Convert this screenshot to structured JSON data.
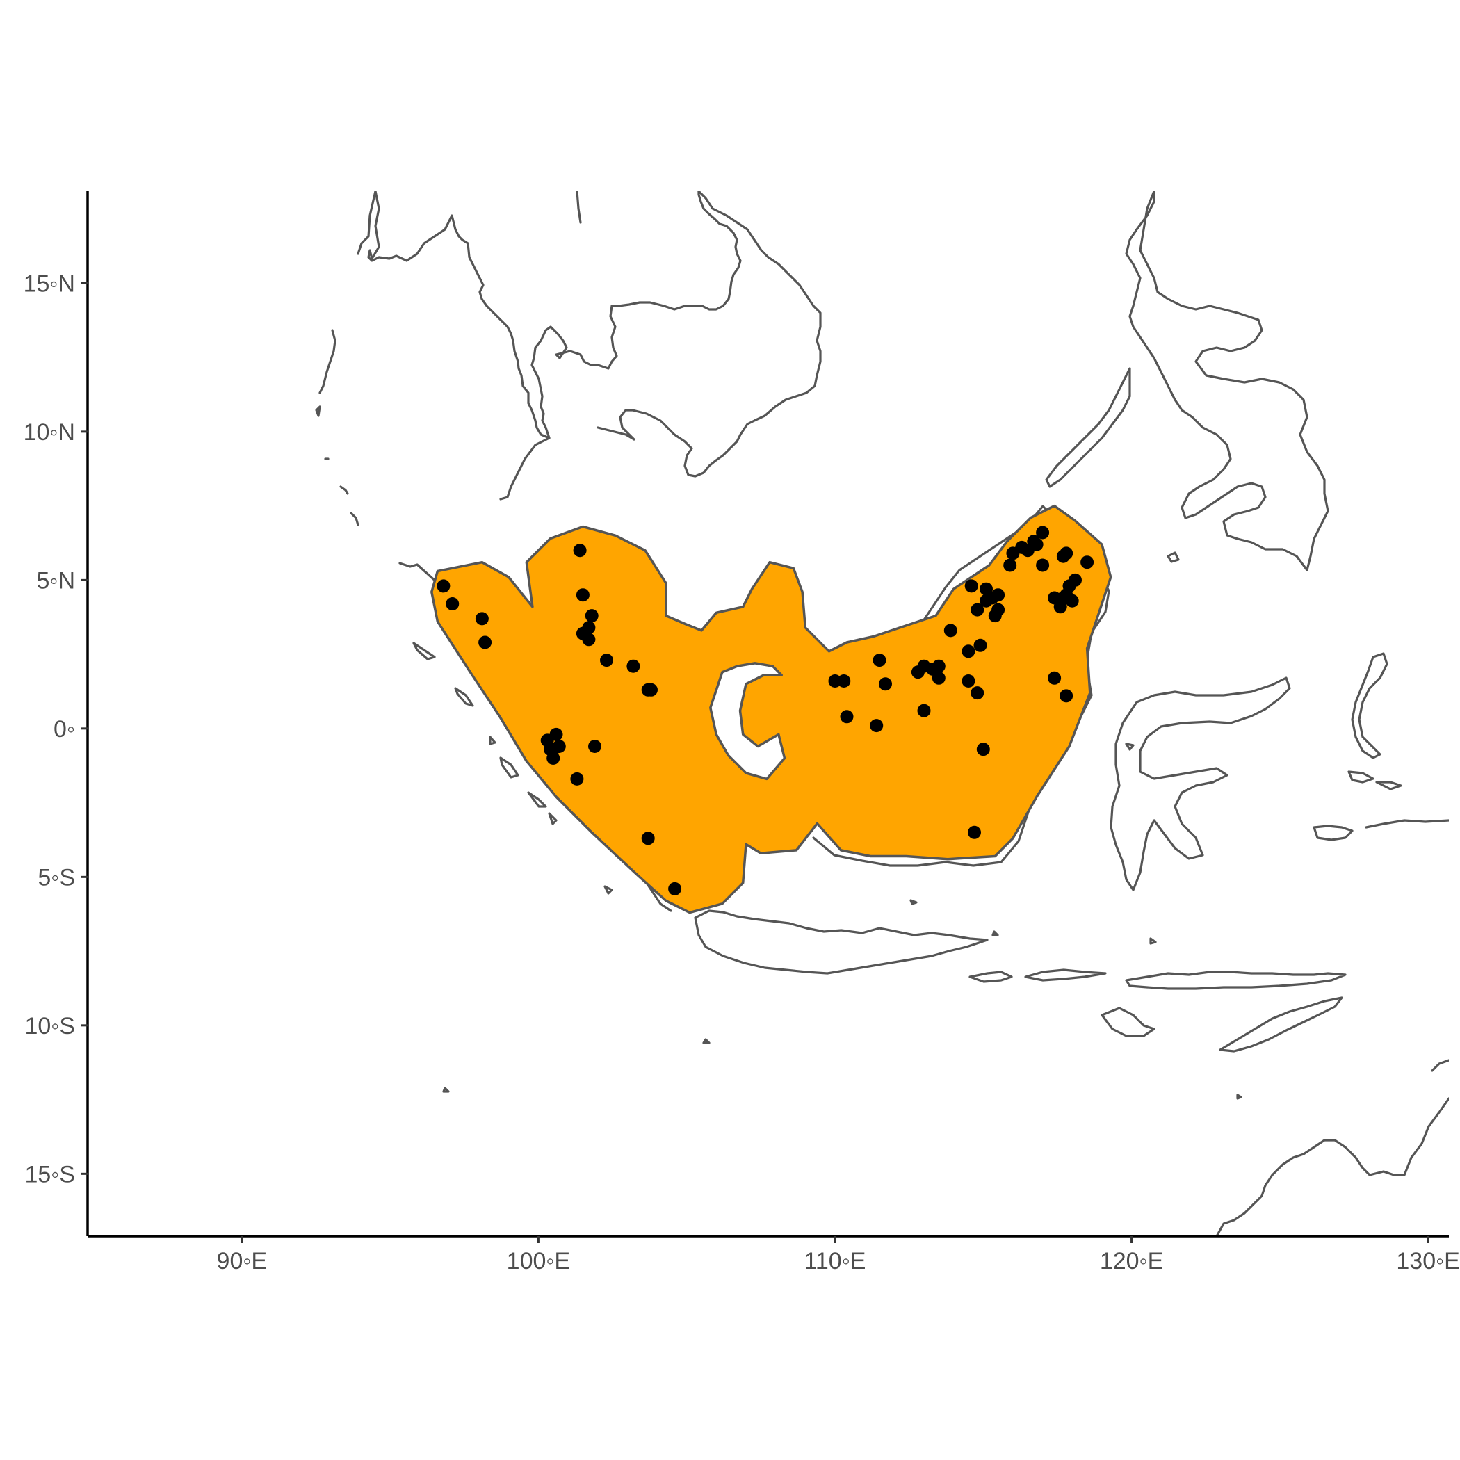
{
  "chart_data": {
    "type": "map",
    "title": "",
    "xlabel": "",
    "ylabel": "",
    "xlim": [
      84.8,
      130.7
    ],
    "ylim": [
      -17.1,
      18.1
    ],
    "x_ticks": [
      {
        "value": 90,
        "label": "90◦E"
      },
      {
        "value": 100,
        "label": "100◦E"
      },
      {
        "value": 110,
        "label": "110◦E"
      },
      {
        "value": 120,
        "label": "120◦E"
      },
      {
        "value": 130,
        "label": "130◦E"
      }
    ],
    "y_ticks": [
      {
        "value": 15,
        "label": "15◦N"
      },
      {
        "value": 10,
        "label": "10◦N"
      },
      {
        "value": 5,
        "label": "5◦N"
      },
      {
        "value": 0,
        "label": "0◦"
      },
      {
        "value": -5,
        "label": "5◦S"
      },
      {
        "value": -10,
        "label": "10◦S"
      },
      {
        "value": -15,
        "label": "15◦S"
      }
    ],
    "grid": false,
    "range_fill_color": "#FFA500",
    "point_color": "#000000",
    "coastline_color": "#555555",
    "range_polygon": [
      [
        96.6,
        5.3
      ],
      [
        98.1,
        5.6
      ],
      [
        99.0,
        5.1
      ],
      [
        99.8,
        4.1
      ],
      [
        99.6,
        5.6
      ],
      [
        100.4,
        6.4
      ],
      [
        101.5,
        6.8
      ],
      [
        102.6,
        6.5
      ],
      [
        103.6,
        6.0
      ],
      [
        104.3,
        4.9
      ],
      [
        104.3,
        3.8
      ],
      [
        105.0,
        3.5
      ],
      [
        105.5,
        3.3
      ],
      [
        106.0,
        3.9
      ],
      [
        106.9,
        4.1
      ],
      [
        107.2,
        4.7
      ],
      [
        107.8,
        5.6
      ],
      [
        108.6,
        5.4
      ],
      [
        108.9,
        4.6
      ],
      [
        109.0,
        3.4
      ],
      [
        109.8,
        2.6
      ],
      [
        110.4,
        2.9
      ],
      [
        111.3,
        3.1
      ],
      [
        113.4,
        3.8
      ],
      [
        114.0,
        4.7
      ],
      [
        115.2,
        5.5
      ],
      [
        115.8,
        6.3
      ],
      [
        116.6,
        7.1
      ],
      [
        117.4,
        7.5
      ],
      [
        118.1,
        7.0
      ],
      [
        119.0,
        6.2
      ],
      [
        119.3,
        5.1
      ],
      [
        118.8,
        3.6
      ],
      [
        118.5,
        2.7
      ],
      [
        118.6,
        1.2
      ],
      [
        117.9,
        -0.6
      ],
      [
        116.8,
        -2.3
      ],
      [
        116.0,
        -3.7
      ],
      [
        115.4,
        -4.3
      ],
      [
        113.8,
        -4.4
      ],
      [
        112.4,
        -4.3
      ],
      [
        111.2,
        -4.3
      ],
      [
        110.2,
        -4.1
      ],
      [
        109.4,
        -3.2
      ],
      [
        108.7,
        -4.1
      ],
      [
        107.5,
        -4.2
      ],
      [
        107.0,
        -3.9
      ],
      [
        106.9,
        -5.2
      ],
      [
        106.2,
        -5.9
      ],
      [
        105.1,
        -6.2
      ],
      [
        104.3,
        -5.8
      ],
      [
        103.3,
        -4.9
      ],
      [
        101.8,
        -3.5
      ],
      [
        100.6,
        -2.3
      ],
      [
        99.6,
        -1.1
      ],
      [
        98.7,
        0.4
      ],
      [
        97.7,
        1.9
      ],
      [
        96.6,
        3.6
      ],
      [
        96.4,
        4.6
      ],
      [
        96.6,
        5.3
      ]
    ],
    "range_holes": [
      [
        [
          106.2,
          1.9
        ],
        [
          106.7,
          2.1
        ],
        [
          107.3,
          2.2
        ],
        [
          107.9,
          2.1
        ],
        [
          108.2,
          1.8
        ],
        [
          107.6,
          1.8
        ],
        [
          107.0,
          1.5
        ],
        [
          106.8,
          0.6
        ],
        [
          106.9,
          -0.2
        ],
        [
          107.4,
          -0.6
        ],
        [
          108.1,
          -0.2
        ],
        [
          108.3,
          -1.0
        ],
        [
          107.7,
          -1.7
        ],
        [
          107.0,
          -1.5
        ],
        [
          106.4,
          -0.9
        ],
        [
          106.0,
          -0.2
        ],
        [
          105.8,
          0.7
        ],
        [
          106.2,
          1.9
        ]
      ]
    ],
    "points": [
      [
        96.8,
        4.8
      ],
      [
        97.1,
        4.2
      ],
      [
        98.1,
        3.7
      ],
      [
        98.2,
        2.9
      ],
      [
        101.4,
        6.0
      ],
      [
        101.5,
        4.5
      ],
      [
        101.8,
        3.8
      ],
      [
        101.7,
        3.4
      ],
      [
        101.5,
        3.2
      ],
      [
        101.7,
        3.0
      ],
      [
        102.3,
        2.3
      ],
      [
        103.2,
        2.1
      ],
      [
        103.7,
        1.3
      ],
      [
        103.8,
        1.3
      ],
      [
        100.3,
        -0.4
      ],
      [
        100.6,
        -0.2
      ],
      [
        100.5,
        -0.7
      ],
      [
        100.7,
        -0.6
      ],
      [
        100.4,
        -0.7
      ],
      [
        100.5,
        -1.0
      ],
      [
        101.9,
        -0.6
      ],
      [
        101.3,
        -1.7
      ],
      [
        103.7,
        -3.7
      ],
      [
        104.6,
        -5.4
      ],
      [
        110.0,
        1.6
      ],
      [
        110.3,
        1.6
      ],
      [
        110.4,
        0.4
      ],
      [
        111.5,
        2.3
      ],
      [
        111.7,
        1.5
      ],
      [
        111.4,
        0.1
      ],
      [
        112.8,
        1.9
      ],
      [
        113.0,
        2.1
      ],
      [
        113.3,
        2.0
      ],
      [
        113.5,
        2.1
      ],
      [
        113.5,
        1.7
      ],
      [
        113.0,
        0.6
      ],
      [
        113.9,
        3.3
      ],
      [
        114.5,
        2.6
      ],
      [
        114.5,
        1.6
      ],
      [
        114.8,
        1.2
      ],
      [
        114.9,
        2.8
      ],
      [
        114.6,
        4.8
      ],
      [
        114.8,
        4.0
      ],
      [
        115.1,
        4.7
      ],
      [
        115.1,
        4.3
      ],
      [
        115.3,
        4.4
      ],
      [
        115.5,
        4.5
      ],
      [
        115.5,
        4.0
      ],
      [
        115.4,
        3.8
      ],
      [
        115.0,
        -0.7
      ],
      [
        114.7,
        -3.5
      ],
      [
        115.9,
        5.5
      ],
      [
        116.0,
        5.9
      ],
      [
        116.3,
        6.1
      ],
      [
        116.5,
        6.0
      ],
      [
        116.7,
        6.3
      ],
      [
        116.8,
        6.2
      ],
      [
        117.0,
        6.6
      ],
      [
        117.0,
        5.5
      ],
      [
        117.4,
        4.4
      ],
      [
        117.6,
        4.1
      ],
      [
        117.7,
        4.4
      ],
      [
        117.8,
        4.5
      ],
      [
        117.9,
        4.8
      ],
      [
        118.0,
        4.3
      ],
      [
        118.1,
        5.0
      ],
      [
        117.8,
        5.9
      ],
      [
        117.7,
        5.8
      ],
      [
        118.5,
        5.6
      ],
      [
        117.4,
        1.7
      ],
      [
        117.8,
        1.1
      ]
    ]
  }
}
